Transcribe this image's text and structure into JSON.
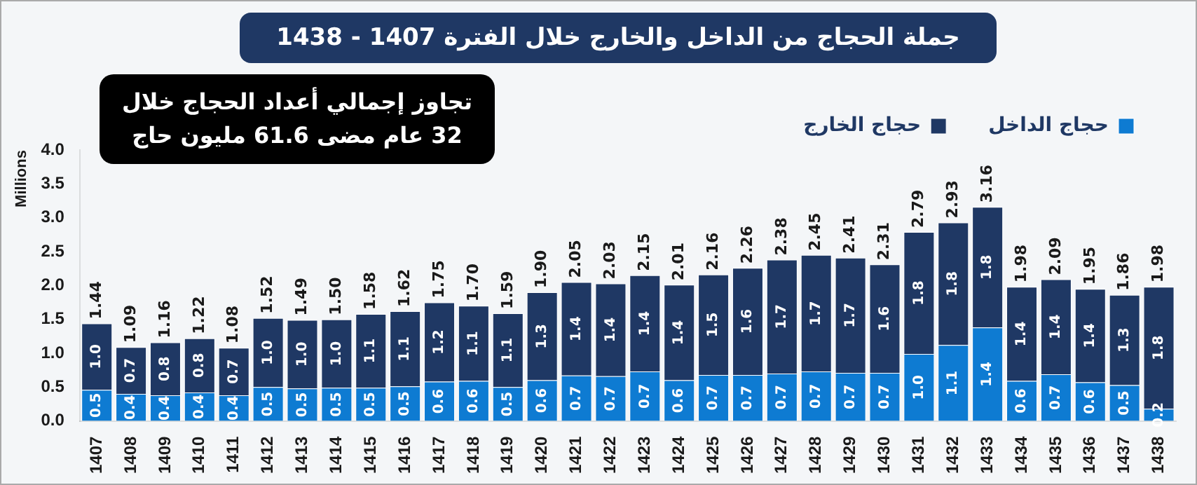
{
  "chart_data": {
    "type": "bar",
    "stacked": true,
    "title": "جملة الحجاج من الداخل والخارج خلال الفترة 1407 - 1438",
    "ylabel": "Millions",
    "annotations": [
      "تجاوز إجمالي أعداد الحجاج خلال 32 عام مضى 61.6 مليون حاج"
    ],
    "categories": [
      "1407",
      "1408",
      "1409",
      "1410",
      "1411",
      "1412",
      "1413",
      "1414",
      "1415",
      "1416",
      "1417",
      "1418",
      "1419",
      "1420",
      "1421",
      "1422",
      "1423",
      "1424",
      "1425",
      "1426",
      "1427",
      "1428",
      "1429",
      "1430",
      "1431",
      "1432",
      "1433",
      "1434",
      "1435",
      "1436",
      "1437",
      "1438"
    ],
    "series": [
      {
        "name": "حجاج الداخل",
        "color": "#0e7bd2",
        "values": [
          0.46,
          0.4,
          0.38,
          0.42,
          0.38,
          0.5,
          0.48,
          0.49,
          0.49,
          0.51,
          0.58,
          0.59,
          0.5,
          0.6,
          0.67,
          0.66,
          0.73,
          0.6,
          0.68,
          0.68,
          0.7,
          0.73,
          0.71,
          0.71,
          0.99,
          1.12,
          1.38,
          0.59,
          0.69,
          0.57,
          0.53,
          0.18
        ],
        "value_labels": [
          "0.5",
          "0.4",
          "0.4",
          "0.4",
          "0.4",
          "0.5",
          "0.5",
          "0.5",
          "0.5",
          "0.5",
          "0.6",
          "0.6",
          "0.5",
          "0.6",
          "0.7",
          "0.7",
          "0.7",
          "0.6",
          "0.7",
          "0.7",
          "0.7",
          "0.7",
          "0.7",
          "0.7",
          "1.0",
          "1.1",
          "1.4",
          "0.6",
          "0.7",
          "0.6",
          "0.5",
          "0.2"
        ]
      },
      {
        "name": "حجاج الخارج",
        "color": "#1f3864",
        "values": [
          0.98,
          0.69,
          0.78,
          0.8,
          0.7,
          1.02,
          1.01,
          1.01,
          1.09,
          1.11,
          1.17,
          1.11,
          1.09,
          1.3,
          1.38,
          1.37,
          1.42,
          1.41,
          1.48,
          1.58,
          1.68,
          1.72,
          1.7,
          1.6,
          1.8,
          1.81,
          1.78,
          1.39,
          1.4,
          1.38,
          1.33,
          1.8
        ],
        "value_labels": [
          "1.0",
          "0.7",
          "0.8",
          "0.8",
          "0.7",
          "1.0",
          "1.0",
          "1.0",
          "1.1",
          "1.1",
          "1.2",
          "1.1",
          "1.1",
          "1.3",
          "1.4",
          "1.4",
          "1.4",
          "1.4",
          "1.5",
          "1.6",
          "1.7",
          "1.7",
          "1.7",
          "1.6",
          "1.8",
          "1.8",
          "1.8",
          "1.4",
          "1.4",
          "1.4",
          "1.3",
          "1.8"
        ]
      }
    ],
    "totals": [
      "1.44",
      "1.09",
      "1.16",
      "1.22",
      "1.08",
      "1.52",
      "1.49",
      "1.50",
      "1.58",
      "1.62",
      "1.75",
      "1.70",
      "1.59",
      "1.90",
      "2.05",
      "2.03",
      "2.15",
      "2.01",
      "2.16",
      "2.26",
      "2.38",
      "2.45",
      "2.41",
      "2.31",
      "2.79",
      "2.93",
      "3.16",
      "1.98",
      "2.09",
      "1.95",
      "1.86",
      "1.98"
    ],
    "legend": "top",
    "grid": false,
    "ylim": [
      0,
      4
    ],
    "yticks": [
      {
        "value": 0,
        "label": "0.0"
      },
      {
        "value": 0.5,
        "label": "0.5"
      },
      {
        "value": 1,
        "label": "1.0"
      },
      {
        "value": 1.5,
        "label": "1.5"
      },
      {
        "value": 2,
        "label": "2.0"
      },
      {
        "value": 2.5,
        "label": "2.5"
      },
      {
        "value": 3,
        "label": "3.0"
      },
      {
        "value": 3.5,
        "label": "3.5"
      },
      {
        "value": 4,
        "label": "4.0"
      }
    ]
  }
}
